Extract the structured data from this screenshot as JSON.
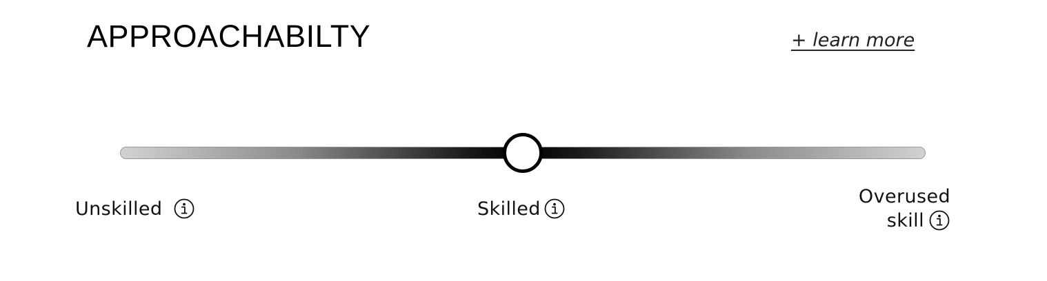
{
  "header": {
    "title": "APPROACHABILTY",
    "learn_more_label": "+ learn more"
  },
  "slider": {
    "value_fraction": 0.5,
    "selected_label": "Skilled",
    "labels": {
      "low": "Unskilled",
      "mid": "Skilled",
      "high_line1": "Overused",
      "high_line2": "skill"
    },
    "icons": {
      "low": "info-icon",
      "mid": "info-icon",
      "high": "info-icon"
    }
  },
  "colors": {
    "track_end": "#d2d2d2",
    "track_center": "#000000",
    "thumb_fill": "#ffffff",
    "thumb_border": "#000000",
    "text": "#111111"
  }
}
